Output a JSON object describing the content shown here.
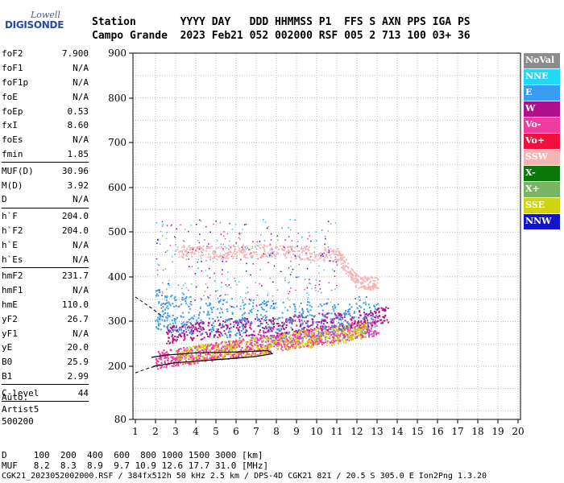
{
  "logo": {
    "top": "Lowell",
    "main": "DIGISONDE"
  },
  "header": {
    "row1": "Station       YYYY DAY   DDD HHMMSS P1  FFS S AXN PPS IGA PS",
    "row2": "Campo Grande  2023 Feb21 052 002000 RSF 005 2 713 100 03+ 36"
  },
  "params": [
    {
      "label": "foF2",
      "value": "7.900"
    },
    {
      "label": "foF1",
      "value": "N/A"
    },
    {
      "label": "foF1p",
      "value": "N/A"
    },
    {
      "label": "foE",
      "value": "N/A"
    },
    {
      "label": "foEp",
      "value": "0.53"
    },
    {
      "label": "fxI",
      "value": "8.60"
    },
    {
      "label": "foEs",
      "value": "N/A"
    },
    {
      "label": "fmin",
      "value": "1.85",
      "sep": true
    },
    {
      "label": "MUF(D)",
      "value": "30.96"
    },
    {
      "label": "M(D)",
      "value": "3.92"
    },
    {
      "label": "D",
      "value": "N/A",
      "sep": true
    },
    {
      "label": "h`F",
      "value": "204.0"
    },
    {
      "label": "h`F2",
      "value": "204.0"
    },
    {
      "label": "h`E",
      "value": "N/A"
    },
    {
      "label": "h`Es",
      "value": "N/A",
      "sep": true
    },
    {
      "label": "hmF2",
      "value": "231.7"
    },
    {
      "label": "hmF1",
      "value": "N/A"
    },
    {
      "label": "hmE",
      "value": "110.0"
    },
    {
      "label": "yF2",
      "value": "26.7"
    },
    {
      "label": "yF1",
      "value": "N/A"
    },
    {
      "label": "yE",
      "value": "20.0"
    },
    {
      "label": "B0",
      "value": "25.9"
    },
    {
      "label": "B1",
      "value": "2.99",
      "sep": true
    },
    {
      "label": "C-level",
      "value": "44",
      "sep": true
    }
  ],
  "auto": {
    "l1": "Auto:",
    "l2": "Artist5",
    "l3": "500200"
  },
  "bottom": {
    "d_line": "D     100  200  400  600  800 1000 1500 3000 [km]",
    "muf_line": "MUF   8.2  8.3  8.9  9.7 10.9 12.6 17.7 31.0 [MHz]",
    "footer": "CGK21_2023052002000.RSF / 384fx512h 50 kHz 2.5 km / DPS-4D CGK21 821 / 20.5 S 305.0 E Ion2Png 1.3.20"
  },
  "legend": [
    {
      "label": "NoVal",
      "color": "#8c8c8c"
    },
    {
      "label": "NNE",
      "color": "#22d8f5"
    },
    {
      "label": "E",
      "color": "#3a9cf0"
    },
    {
      "label": "W",
      "color": "#b0108c"
    },
    {
      "label": "Vo-",
      "color": "#f03ca0"
    },
    {
      "label": "Vo+",
      "color": "#f0103c"
    },
    {
      "label": "SSW",
      "color": "#f5b4b4"
    },
    {
      "label": "X-",
      "color": "#0a780a"
    },
    {
      "label": "X+",
      "color": "#78b464"
    },
    {
      "label": "SSE",
      "color": "#d2d214"
    },
    {
      "label": "NNW",
      "color": "#1414c8"
    }
  ],
  "chart_data": {
    "type": "scatter",
    "x_ticks": [
      "1",
      "2",
      "3",
      "4",
      "5",
      "6",
      "7",
      "8",
      "9",
      "10",
      "11",
      "12",
      "13",
      "14",
      "15",
      "16",
      "17",
      "18",
      "19",
      "20"
    ],
    "y_ticks": [
      "900",
      "800",
      "700",
      "600",
      "500",
      "400",
      "300",
      "200",
      "80"
    ],
    "xlim": [
      1,
      20
    ],
    "ylim": [
      80,
      900
    ],
    "series": [
      {
        "name": "Vo-",
        "points": [
          [
            2,
            215
          ],
          [
            3,
            222
          ],
          [
            4,
            228
          ],
          [
            5,
            235
          ],
          [
            6,
            240
          ],
          [
            7,
            247
          ],
          [
            8,
            255
          ],
          [
            9,
            262
          ],
          [
            10,
            268
          ],
          [
            11,
            275
          ],
          [
            12,
            282
          ],
          [
            13,
            290
          ]
        ]
      },
      {
        "name": "W",
        "points": [
          [
            2.5,
            270
          ],
          [
            4,
            280
          ],
          [
            6,
            290
          ],
          [
            8,
            290
          ],
          [
            10,
            300
          ],
          [
            12,
            305
          ],
          [
            13.5,
            315
          ]
        ]
      },
      {
        "name": "E",
        "points": [
          [
            2,
            330
          ],
          [
            3,
            320
          ],
          [
            5,
            310
          ],
          [
            7,
            305
          ],
          [
            9,
            300
          ],
          [
            11,
            305
          ],
          [
            13,
            320
          ]
        ]
      },
      {
        "name": "SSW",
        "points": [
          [
            3,
            460
          ],
          [
            5,
            455
          ],
          [
            7,
            460
          ],
          [
            9,
            455
          ],
          [
            11,
            450
          ],
          [
            12,
            390
          ],
          [
            13,
            385
          ]
        ]
      },
      {
        "name": "SSE",
        "points": [
          [
            3,
            225
          ],
          [
            5,
            235
          ],
          [
            7,
            245
          ],
          [
            9,
            260
          ],
          [
            11,
            270
          ],
          [
            12.5,
            285
          ]
        ]
      }
    ],
    "trace_line_points": [
      [
        1.9,
        200
      ],
      [
        3,
        208
      ],
      [
        4.5,
        213
      ],
      [
        6,
        218
      ],
      [
        7,
        222
      ],
      [
        7.8,
        228
      ],
      [
        7.6,
        235
      ],
      [
        6,
        232
      ],
      [
        4,
        230
      ],
      [
        2.5,
        225
      ],
      [
        1.8,
        220
      ]
    ]
  }
}
